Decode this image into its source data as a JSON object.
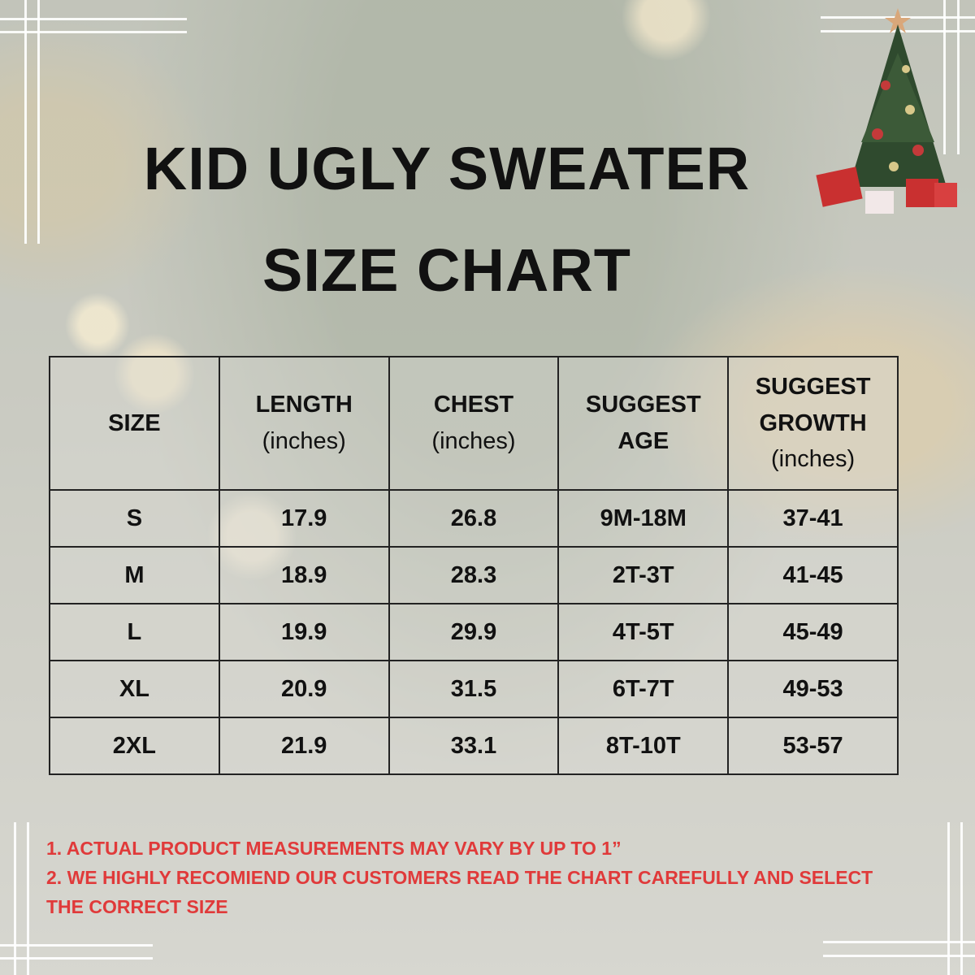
{
  "title": {
    "line1": "KID UGLY SWEATER",
    "line2": "SIZE CHART"
  },
  "table": {
    "headers": [
      [
        "SIZE"
      ],
      [
        "LENGTH",
        "(inches)"
      ],
      [
        "CHEST",
        "(inches)"
      ],
      [
        "SUGGEST",
        "AGE"
      ],
      [
        "SUGGEST",
        "GROWTH",
        "(inches)"
      ]
    ],
    "rows": [
      [
        "S",
        "17.9",
        "26.8",
        "9M-18M",
        "37-41"
      ],
      [
        "M",
        "18.9",
        "28.3",
        "2T-3T",
        "41-45"
      ],
      [
        "L",
        "19.9",
        "29.9",
        "4T-5T",
        "45-49"
      ],
      [
        "XL",
        "20.9",
        "31.5",
        "6T-7T",
        "49-53"
      ],
      [
        "2XL",
        "21.9",
        "33.1",
        "8T-10T",
        "53-57"
      ]
    ]
  },
  "notes": [
    "1. ACTUAL PRODUCT MEASUREMENTS MAY VARY BY UP TO 1”",
    "2. WE HIGHLY RECOMIEND OUR CUSTOMERS READ THE CHART CAREFULLY AND SELECT THE CORRECT SIZE"
  ],
  "decor": {
    "icon": "christmas-tree-icon",
    "note_color": "#e03a3a",
    "text_color": "#111111"
  }
}
